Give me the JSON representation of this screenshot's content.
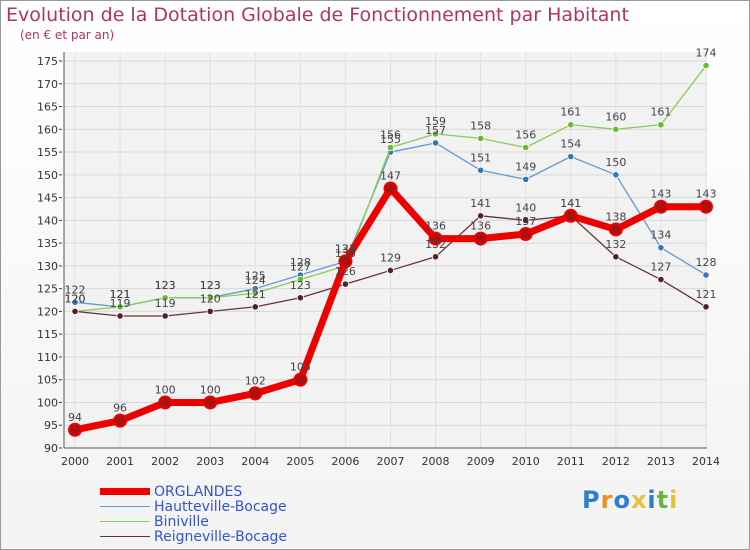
{
  "chart_data": {
    "type": "line",
    "title": "Evolution de la Dotation Globale de Fonctionnement par Habitant",
    "subtitle": "(en € et par an)",
    "categories": [
      "2000",
      "2001",
      "2002",
      "2003",
      "2004",
      "2005",
      "2006",
      "2007",
      "2008",
      "2009",
      "2010",
      "2011",
      "2012",
      "2013",
      "2014"
    ],
    "ylim": [
      90,
      175
    ],
    "yticks": [
      90,
      95,
      100,
      105,
      110,
      115,
      120,
      125,
      130,
      135,
      140,
      145,
      150,
      155,
      160,
      165,
      170,
      175
    ],
    "grid": true,
    "legend_position": "bottom-left",
    "series": [
      {
        "name": "ORGLANDES",
        "color": "#ee0000",
        "marker_color": "#aa1111",
        "values": [
          94,
          96,
          100,
          100,
          102,
          105,
          131,
          147,
          136,
          136,
          137,
          141,
          138,
          143,
          143
        ]
      },
      {
        "name": "Hautteville-Bocage",
        "color": "#6699cc",
        "marker_color": "#3377bb",
        "values": [
          122,
          121,
          123,
          123,
          125,
          128,
          131,
          155,
          157,
          151,
          149,
          154,
          150,
          134,
          128
        ]
      },
      {
        "name": "Biniville",
        "color": "#88cc55",
        "marker_color": "#66bb33",
        "values": [
          120,
          121,
          123,
          123,
          124,
          127,
          130,
          156,
          159,
          158,
          156,
          161,
          160,
          161,
          174
        ]
      },
      {
        "name": "Reigneville-Bocage",
        "color": "#663333",
        "marker_color": "#552222",
        "values": [
          120,
          119,
          119,
          120,
          121,
          123,
          126,
          129,
          132,
          141,
          140,
          141,
          132,
          127,
          121
        ]
      }
    ]
  },
  "logo": {
    "text": "Proxiti",
    "colors": [
      "#2e7dd1",
      "#f28c28",
      "#2e7dd1",
      "#e8c13a",
      "#2e7dd1",
      "#6db33f",
      "#e8c13a"
    ]
  }
}
